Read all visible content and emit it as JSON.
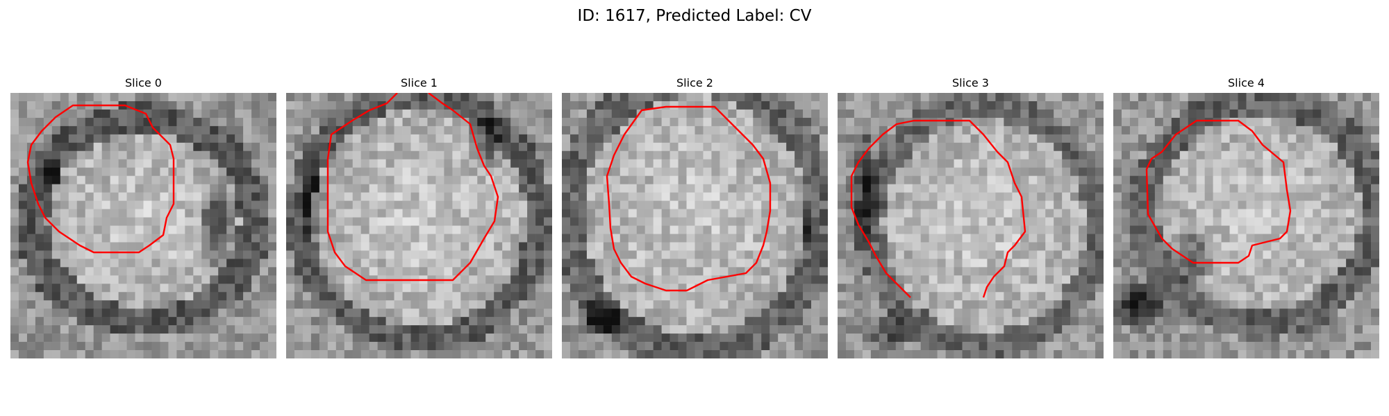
{
  "figure": {
    "title": "ID: 1617, Predicted Label: CV"
  },
  "colors": {
    "contour": "#ff0000",
    "background": "#ffffff"
  },
  "panels": [
    {
      "title": "Slice 0"
    },
    {
      "title": "Slice 1"
    },
    {
      "title": "Slice 2"
    },
    {
      "title": "Slice 3"
    },
    {
      "title": "Slice 4"
    }
  ]
}
